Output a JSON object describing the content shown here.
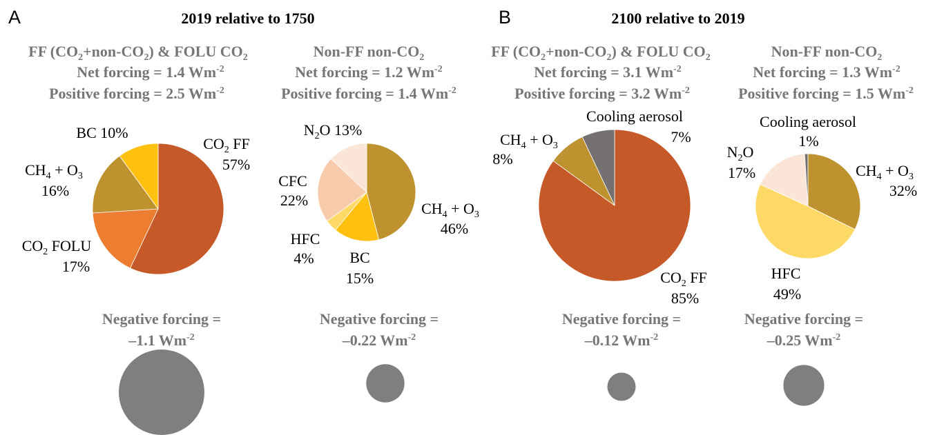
{
  "chart_data": [
    {
      "panel": "A",
      "title": "2019 relative to 1750",
      "charts": [
        {
          "type": "pie",
          "header": [
            "FF (CO2+non-CO2) & FOLU CO2",
            "Net forcing = 1.4 Wm-2",
            "Positive forcing = 2.5 Wm-2"
          ],
          "slices": [
            {
              "label": "CO2 FF",
              "pct": 57,
              "color": "#c55a28"
            },
            {
              "label": "CO2 FOLU",
              "pct": 17,
              "color": "#ed7d31"
            },
            {
              "label": "CH4 + O3",
              "pct": 16,
              "color": "#bf9230"
            },
            {
              "label": "BC",
              "pct": 10,
              "color": "#ffc010"
            }
          ],
          "negative": {
            "label": "Negative forcing =",
            "value": "–1.1 Wm-2",
            "value_num": -1.1,
            "color": "#7f7f7f"
          }
        },
        {
          "type": "pie",
          "header": [
            "Non-FF non-CO2",
            "Net forcing = 1.2 Wm-2",
            "Positive forcing = 1.4 Wm-2"
          ],
          "slices": [
            {
              "label": "CH4 + O3",
              "pct": 46,
              "color": "#bf9230"
            },
            {
              "label": "BC",
              "pct": 15,
              "color": "#ffc010"
            },
            {
              "label": "HFC",
              "pct": 4,
              "color": "#ffd966"
            },
            {
              "label": "CFC",
              "pct": 22,
              "color": "#f8cbad"
            },
            {
              "label": "N2O",
              "pct": 13,
              "color": "#fbe5d6"
            }
          ],
          "negative": {
            "label": "Negative forcing =",
            "value": "–0.22 Wm-2",
            "value_num": -0.22,
            "color": "#7f7f7f"
          }
        }
      ]
    },
    {
      "panel": "B",
      "title": "2100 relative to 2019",
      "charts": [
        {
          "type": "pie",
          "header": [
            "FF (CO2+non-CO2) & FOLU CO2",
            "Net forcing = 3.1 Wm-2",
            "Positive forcing = 3.2 Wm-2"
          ],
          "slices": [
            {
              "label": "CO2 FF",
              "pct": 85,
              "color": "#c55a28"
            },
            {
              "label": "CH4 + O3",
              "pct": 8,
              "color": "#bf9230"
            },
            {
              "label": "Cooling aerosol",
              "pct": 7,
              "color": "#767171"
            }
          ],
          "negative": {
            "label": "Negative forcing =",
            "value": "–0.12 Wm-2",
            "value_num": -0.12,
            "color": "#7f7f7f"
          }
        },
        {
          "type": "pie",
          "header": [
            "Non-FF non-CO2",
            "Net forcing = 1.3 Wm-2",
            "Positive forcing = 1.5 Wm-2"
          ],
          "slices": [
            {
              "label": "CH4 + O3",
              "pct": 32,
              "color": "#bf9230"
            },
            {
              "label": "HFC",
              "pct": 49,
              "color": "#ffd966"
            },
            {
              "label": "N2O",
              "pct": 17,
              "color": "#fbe5d6"
            },
            {
              "label": "Cooling aerosol",
              "pct": 1,
              "color": "#767171"
            }
          ],
          "negative": {
            "label": "Negative forcing =",
            "value": "–0.25 Wm-2",
            "value_num": -0.25,
            "color": "#7f7f7f"
          }
        }
      ]
    }
  ]
}
